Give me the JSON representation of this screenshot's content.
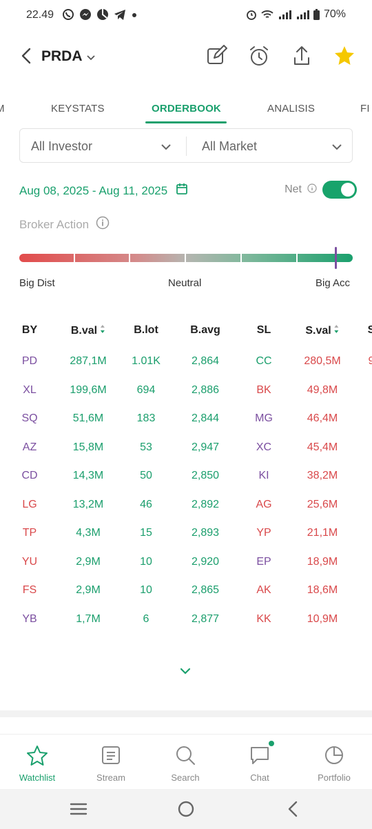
{
  "status": {
    "time": "22.49",
    "battery": "70%"
  },
  "header": {
    "ticker": "PRDA"
  },
  "tabs": [
    {
      "label": "M"
    },
    {
      "label": "KEYSTATS"
    },
    {
      "label": "ORDERBOOK",
      "active": true
    },
    {
      "label": "ANALISIS"
    },
    {
      "label": "FI"
    }
  ],
  "filters": {
    "investor": "All Investor",
    "market": "All Market"
  },
  "date_range": "Aug 08, 2025 - Aug 11, 2025",
  "net_label": "Net",
  "net_enabled": true,
  "broker_action": {
    "label": "Broker Action",
    "left": "Big Dist",
    "middle": "Neutral",
    "right": "Big Acc",
    "level": 0.95
  },
  "table": {
    "headers": [
      "BY",
      "B.val",
      "B.lot",
      "B.avg",
      "SL",
      "S.val",
      "S"
    ],
    "rows": [
      {
        "by": "PD",
        "bval": "287,1M",
        "blot": "1.01K",
        "bavg": "2,864",
        "sl": "CC",
        "sval": "280,5M",
        "s": "9",
        "by_color": "purple",
        "sl_color": "green"
      },
      {
        "by": "XL",
        "bval": "199,6M",
        "blot": "694",
        "bavg": "2,886",
        "sl": "BK",
        "sval": "49,8M",
        "s": "",
        "by_color": "purple",
        "sl_color": "red"
      },
      {
        "by": "SQ",
        "bval": "51,6M",
        "blot": "183",
        "bavg": "2,844",
        "sl": "MG",
        "sval": "46,4M",
        "s": "",
        "by_color": "purple",
        "sl_color": "purple"
      },
      {
        "by": "AZ",
        "bval": "15,8M",
        "blot": "53",
        "bavg": "2,947",
        "sl": "XC",
        "sval": "45,4M",
        "s": "",
        "by_color": "purple",
        "sl_color": "purple"
      },
      {
        "by": "CD",
        "bval": "14,3M",
        "blot": "50",
        "bavg": "2,850",
        "sl": "KI",
        "sval": "38,2M",
        "s": "",
        "by_color": "purple",
        "sl_color": "purple"
      },
      {
        "by": "LG",
        "bval": "13,2M",
        "blot": "46",
        "bavg": "2,892",
        "sl": "AG",
        "sval": "25,6M",
        "s": "",
        "by_color": "red",
        "sl_color": "red"
      },
      {
        "by": "TP",
        "bval": "4,3M",
        "blot": "15",
        "bavg": "2,893",
        "sl": "YP",
        "sval": "21,1M",
        "s": "",
        "by_color": "red",
        "sl_color": "red"
      },
      {
        "by": "YU",
        "bval": "2,9M",
        "blot": "10",
        "bavg": "2,920",
        "sl": "EP",
        "sval": "18,9M",
        "s": "",
        "by_color": "red",
        "sl_color": "purple"
      },
      {
        "by": "FS",
        "bval": "2,9M",
        "blot": "10",
        "bavg": "2,865",
        "sl": "AK",
        "sval": "18,6M",
        "s": "",
        "by_color": "red",
        "sl_color": "red"
      },
      {
        "by": "YB",
        "bval": "1,7M",
        "blot": "6",
        "bavg": "2,877",
        "sl": "KK",
        "sval": "10,9M",
        "s": "",
        "by_color": "purple",
        "sl_color": "red"
      }
    ]
  },
  "bottom_nav": [
    {
      "label": "Watchlist",
      "icon": "star-outline-icon",
      "active": true
    },
    {
      "label": "Stream",
      "icon": "stream-icon"
    },
    {
      "label": "Search",
      "icon": "search-icon"
    },
    {
      "label": "Chat",
      "icon": "chat-icon",
      "badge": true
    },
    {
      "label": "Portfolio",
      "icon": "pie-chart-icon"
    }
  ],
  "colors": {
    "accent": "#1aa06d",
    "sell": "#d9484a",
    "broker": "#7b4fa0",
    "star": "#f5c800"
  }
}
